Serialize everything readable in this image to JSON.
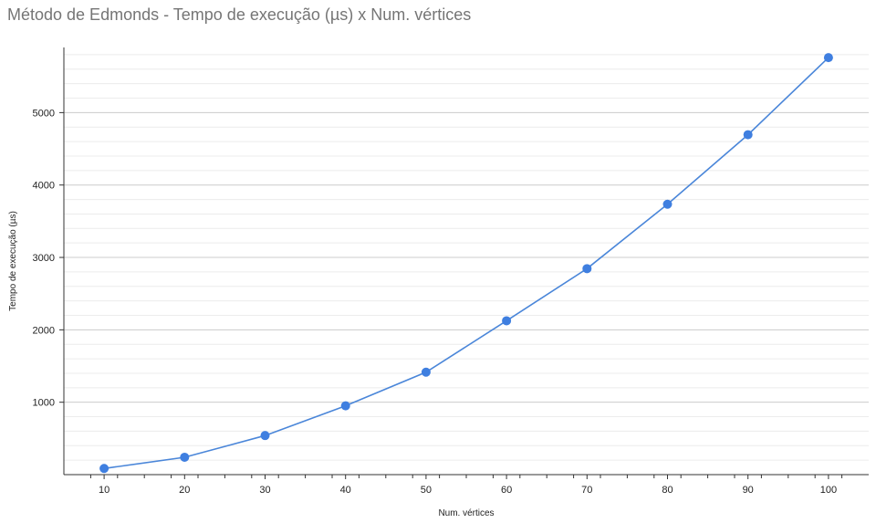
{
  "chart_data": {
    "type": "line",
    "title": "Método de Edmonds - Tempo de execução (µs) x Num. vértices",
    "xlabel": "Num. vértices",
    "ylabel": "Tempo de execução (µs)",
    "x": [
      10,
      20,
      30,
      40,
      50,
      60,
      70,
      80,
      90,
      100
    ],
    "series": [
      {
        "values": [
          85,
          240,
          540,
          950,
          1415,
          2125,
          2845,
          3735,
          4695,
          5760
        ]
      }
    ],
    "xlim": [
      5,
      105
    ],
    "ylim": [
      0,
      5900
    ],
    "xticks": [
      10,
      20,
      30,
      40,
      50,
      60,
      70,
      80,
      90,
      100
    ],
    "yticks": [
      1000,
      2000,
      3000,
      4000,
      5000
    ],
    "grid": true,
    "minor_grid": true,
    "legend": "none",
    "colors": {
      "line": "#4a86d9",
      "point": "#3f7fe0",
      "grid_major": "#cccccc",
      "grid_minor": "#ececec",
      "axis": "#333333"
    }
  }
}
